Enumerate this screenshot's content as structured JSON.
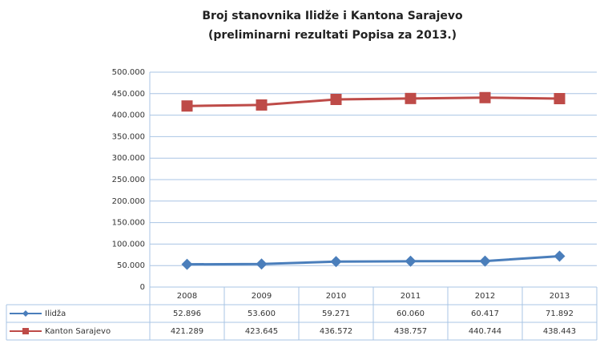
{
  "chart_data": {
    "type": "line",
    "title": "Broj stanovnika Ilidže i Kantona Sarajevo",
    "subtitle": "(preliminarni rezultati  Popisa za 2013.)",
    "categories": [
      "2008",
      "2009",
      "2010",
      "2011",
      "2012",
      "2013"
    ],
    "series": [
      {
        "name": "Ilidža",
        "color": "#4a7ebb",
        "marker": "diamond",
        "values": [
          52896,
          53600,
          59271,
          60060,
          60417,
          71892
        ],
        "value_labels": [
          "52.896",
          "53.600",
          "59.271",
          "60.060",
          "60.417",
          "71.892"
        ]
      },
      {
        "name": "Kanton Sarajevo",
        "color": "#be4b48",
        "marker": "square",
        "values": [
          421289,
          423645,
          436572,
          438757,
          440744,
          438443
        ],
        "value_labels": [
          "421.289",
          "423.645",
          "436.572",
          "438.757",
          "440.744",
          "438.443"
        ]
      }
    ],
    "ylim": [
      0,
      500000
    ],
    "yticks": [
      0,
      {
        "value": 50000,
        "label": "50.000"
      },
      {
        "value": 100000,
        "label": "100.000"
      },
      {
        "value": 150000,
        "label": "150.000"
      },
      {
        "value": 200000,
        "label": "200.000"
      },
      {
        "value": 250000,
        "label": "250.000"
      },
      {
        "value": 300000,
        "label": "300.000"
      },
      {
        "value": 350000,
        "label": "350.000"
      },
      {
        "value": 400000,
        "label": "400.000"
      },
      {
        "value": 450000,
        "label": "450.000"
      },
      {
        "value": 500000,
        "label": "500.000"
      }
    ],
    "grid": true
  }
}
